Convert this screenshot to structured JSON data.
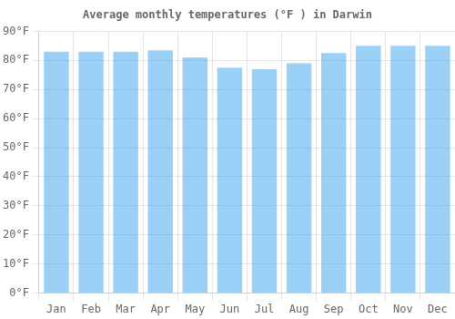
{
  "chart_data": {
    "type": "bar",
    "title": "Average monthly temperatures (°F ) in Darwin",
    "categories": [
      "Jan",
      "Feb",
      "Mar",
      "Apr",
      "May",
      "Jun",
      "Jul",
      "Aug",
      "Sep",
      "Oct",
      "Nov",
      "Dec"
    ],
    "values": [
      83,
      83,
      83,
      83.5,
      81,
      77.5,
      77,
      79,
      82.5,
      85,
      85,
      85
    ],
    "ylim": [
      0,
      90
    ],
    "yticks": [
      {
        "value": 0,
        "label": "0°F"
      },
      {
        "value": 10,
        "label": "10°F"
      },
      {
        "value": 20,
        "label": "20°F"
      },
      {
        "value": 30,
        "label": "30°F"
      },
      {
        "value": 40,
        "label": "40°F"
      },
      {
        "value": 50,
        "label": "50°F"
      },
      {
        "value": 60,
        "label": "60°F"
      },
      {
        "value": 70,
        "label": "70°F"
      },
      {
        "value": 80,
        "label": "80°F"
      },
      {
        "value": 90,
        "label": "90°F"
      }
    ],
    "grid": true
  }
}
